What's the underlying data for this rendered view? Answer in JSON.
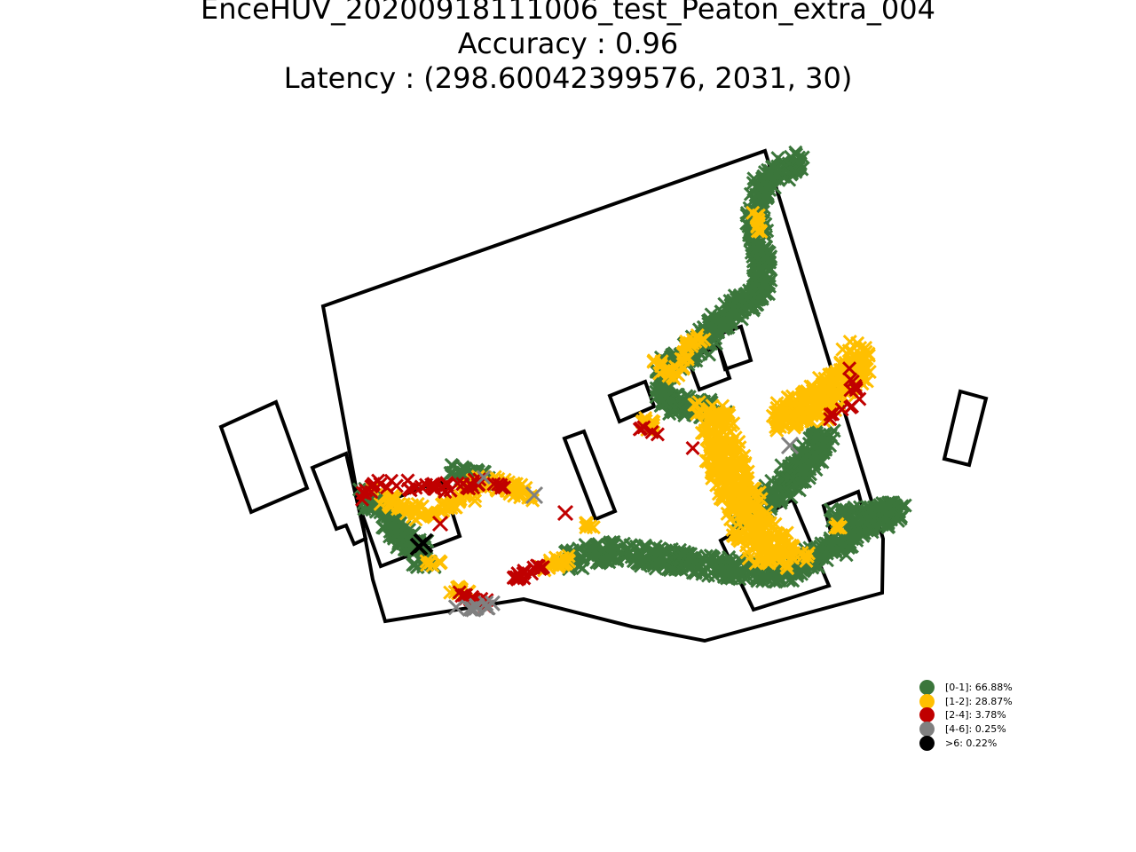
{
  "chart_data": {
    "type": "scatter",
    "title_lines": [
      "EnceHUV_20200918111006_test_Peaton_extra_004",
      "Accuracy : 0.96",
      "Latency : (298.60042399576, 2031, 30)"
    ],
    "xlabel": "",
    "ylabel": "",
    "axes_visible": false,
    "grid": false,
    "legend_placement": "lower-right",
    "marker": "x",
    "legend": [
      {
        "label": "[0-1]: 66.88%",
        "color": "#3b763b"
      },
      {
        "label": "[1-2]: 28.87%",
        "color": "#ffbf00"
      },
      {
        "label": "[2-4]: 3.78%",
        "color": "#c00000"
      },
      {
        "label": "[4-6]: 0.25%",
        "color": "#808080"
      },
      {
        "label": ">6: 0.22%",
        "color": "#000000"
      }
    ]
  }
}
